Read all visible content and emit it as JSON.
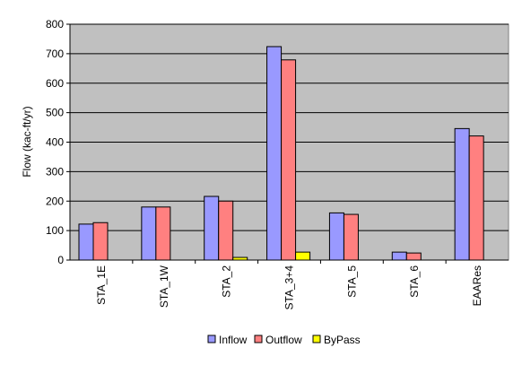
{
  "chart_data": {
    "type": "bar",
    "title": "",
    "xlabel": "",
    "ylabel": "Flow (kac-ft/yr)",
    "ylim": [
      0,
      800
    ],
    "yticks": [
      0,
      100,
      200,
      300,
      400,
      500,
      600,
      700,
      800
    ],
    "grid": true,
    "legend": "bottom",
    "categories": [
      "STA_1E",
      "STA_1W",
      "STA_2",
      "STA_3+4",
      "STA_5",
      "STA_6",
      "EAARes"
    ],
    "series": [
      {
        "name": "Inflow",
        "color": "#9999ff",
        "values": [
          122,
          180,
          216,
          724,
          160,
          27,
          446
        ]
      },
      {
        "name": "Outflow",
        "color": "#ff8080",
        "values": [
          127,
          180,
          200,
          679,
          155,
          24,
          421
        ]
      },
      {
        "name": "ByPass",
        "color": "#ffff00",
        "values": [
          0,
          0,
          9,
          27,
          0,
          0,
          0
        ]
      }
    ]
  }
}
